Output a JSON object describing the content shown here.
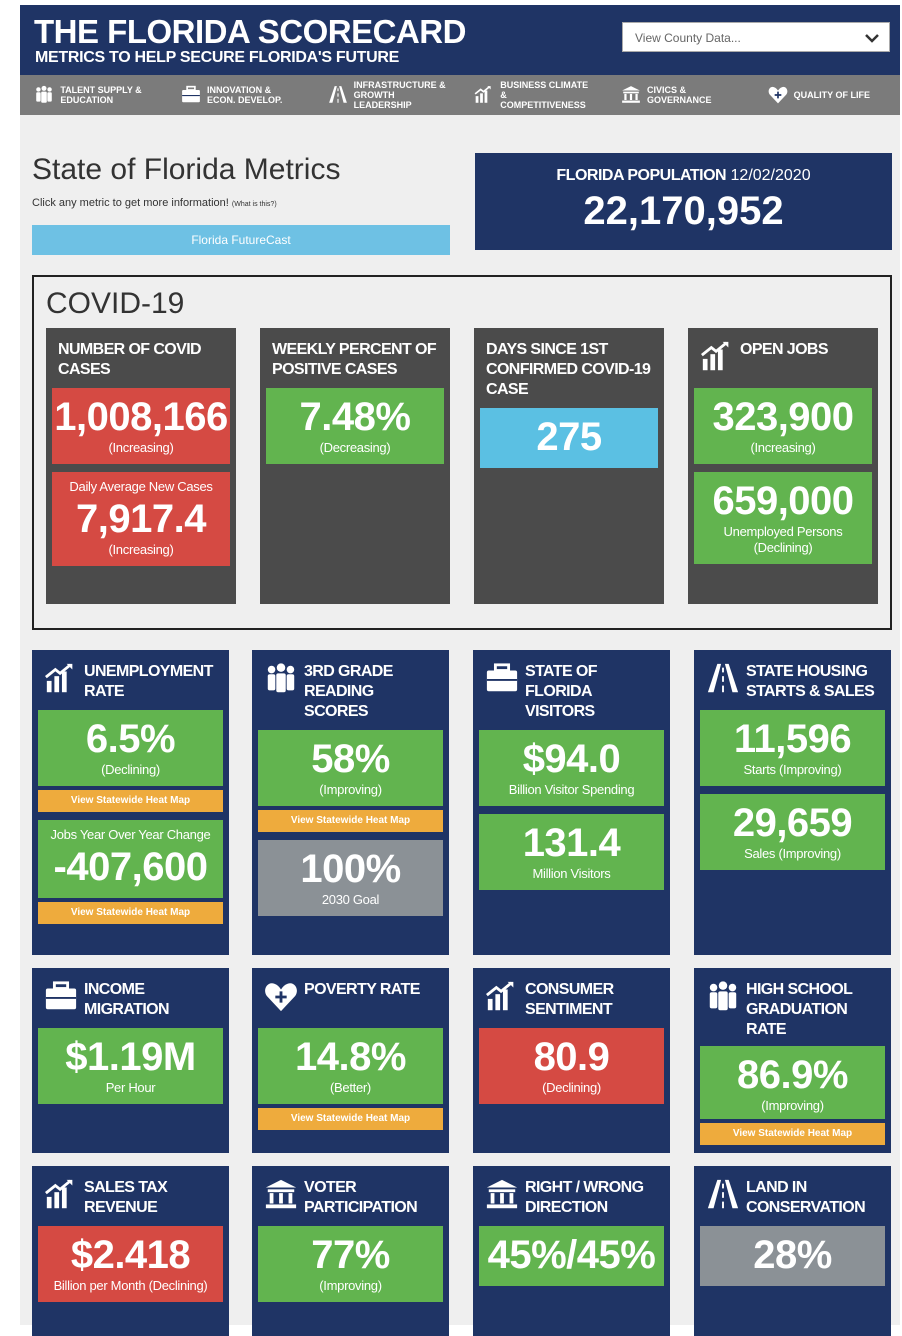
{
  "header": {
    "title": "THE FLORIDA SCORECARD",
    "subtitle": "METRICS TO HELP SECURE FLORIDA'S FUTURE",
    "county_select": "View County Data..."
  },
  "nav": [
    {
      "label": "TALENT SUPPLY & EDUCATION",
      "icon": "people"
    },
    {
      "label": "INNOVATION & ECON. DEVELOP.",
      "icon": "briefcase"
    },
    {
      "label": "INFRASTRUCTURE & GROWTH LEADERSHIP",
      "icon": "road"
    },
    {
      "label": "BUSINESS CLIMATE & COMPETITIVENESS",
      "icon": "chart"
    },
    {
      "label": "CIVICS & GOVERNANCE",
      "icon": "building"
    },
    {
      "label": "QUALITY OF LIFE",
      "icon": "heart"
    }
  ],
  "intro": {
    "title": "State of Florida Metrics",
    "hint": "Click any metric to get more information!",
    "hint_link": "(What is this?)",
    "button": "Florida FutureCast"
  },
  "population": {
    "label": "FLORIDA POPULATION",
    "date": "12/02/2020",
    "value": "22,170,952"
  },
  "covid": {
    "title": "COVID-19",
    "cards": [
      {
        "title": "NUMBER OF COVID CASES",
        "tiles": [
          {
            "value": "1,008,166",
            "caption": "(Increasing)",
            "color": "red"
          },
          {
            "label": "Daily Average New Cases",
            "value": "7,917.4",
            "caption": "(Increasing)",
            "color": "red"
          }
        ]
      },
      {
        "title": "WEEKLY PERCENT OF POSITIVE CASES",
        "tiles": [
          {
            "value": "7.48%",
            "caption": "(Decreasing)",
            "color": "green"
          }
        ]
      },
      {
        "title": "DAYS SINCE 1ST CONFIRMED COVID-19 CASE",
        "tiles": [
          {
            "value": "275",
            "color": "blue"
          }
        ]
      },
      {
        "title": "OPEN JOBS",
        "icon": "chart",
        "tiles": [
          {
            "value": "323,900",
            "caption": "(Increasing)",
            "color": "green"
          },
          {
            "value": "659,000",
            "caption": "Unemployed Persons (Declining)",
            "color": "green"
          }
        ]
      }
    ]
  },
  "metrics": [
    {
      "title": "UNEMPLOYMENT RATE",
      "icon": "chart",
      "tiles": [
        {
          "value": "6.5%",
          "caption": "(Declining)",
          "color": "green",
          "link": "View Statewide Heat Map"
        },
        {
          "label": "Jobs Year Over Year Change",
          "value": "-407,600",
          "color": "green",
          "link": "View Statewide Heat Map"
        }
      ]
    },
    {
      "title": "3RD GRADE READING SCORES",
      "icon": "people",
      "tiles": [
        {
          "value": "58%",
          "caption": "(Improving)",
          "color": "green",
          "link": "View Statewide Heat Map"
        },
        {
          "value": "100%",
          "caption": "2030 Goal",
          "color": "gray"
        }
      ]
    },
    {
      "title": "STATE OF FLORIDA VISITORS",
      "icon": "briefcase",
      "tiles": [
        {
          "value": "$94.0",
          "caption": "Billion Visitor Spending",
          "color": "green"
        },
        {
          "value": "131.4",
          "caption": "Million Visitors",
          "color": "green"
        }
      ]
    },
    {
      "title": "STATE HOUSING STARTS & SALES",
      "icon": "road",
      "tiles": [
        {
          "value": "11,596",
          "caption": "Starts (Improving)",
          "color": "green"
        },
        {
          "value": "29,659",
          "caption": "Sales (Improving)",
          "color": "green"
        }
      ]
    },
    {
      "title": "INCOME MIGRATION",
      "icon": "briefcase",
      "tiles": [
        {
          "value": "$1.19M",
          "caption": "Per Hour",
          "color": "green"
        }
      ]
    },
    {
      "title": "POVERTY RATE",
      "icon": "heart",
      "tiles": [
        {
          "value": "14.8%",
          "caption": "(Better)",
          "color": "green",
          "link": "View Statewide Heat Map"
        }
      ]
    },
    {
      "title": "CONSUMER SENTIMENT",
      "icon": "chart",
      "tiles": [
        {
          "value": "80.9",
          "caption": "(Declining)",
          "color": "red"
        }
      ]
    },
    {
      "title": "HIGH SCHOOL GRADUATION RATE",
      "icon": "people",
      "tiles": [
        {
          "value": "86.9%",
          "caption": "(Improving)",
          "color": "green",
          "link": "View Statewide Heat Map"
        }
      ]
    },
    {
      "title": "SALES TAX REVENUE",
      "icon": "chart",
      "tiles": [
        {
          "value": "$2.418",
          "caption": "Billion per Month (Declining)",
          "color": "red"
        }
      ]
    },
    {
      "title": "VOTER PARTICIPATION",
      "icon": "building",
      "tiles": [
        {
          "value": "77%",
          "caption": "(Improving)",
          "color": "green"
        }
      ]
    },
    {
      "title": "RIGHT / WRONG DIRECTION",
      "icon": "building",
      "tiles": [
        {
          "value": "45%/45%",
          "color": "green"
        }
      ]
    },
    {
      "title": "LAND IN CONSERVATION",
      "icon": "road",
      "tiles": [
        {
          "value": "28%",
          "color": "gray"
        }
      ]
    }
  ]
}
